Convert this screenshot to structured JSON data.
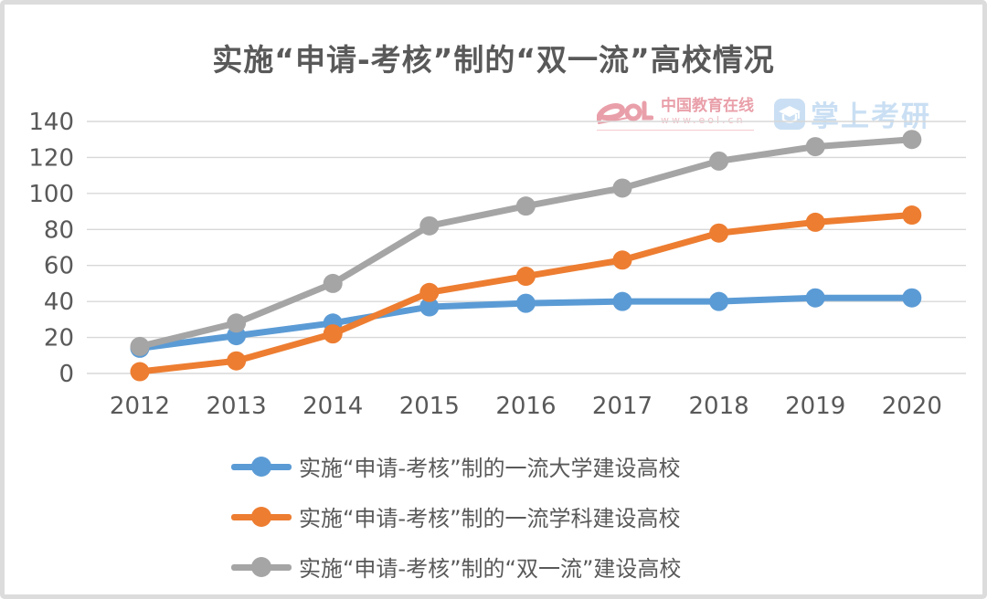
{
  "page": {
    "title": "实施“申请-考核”制的“双一流”高校情况"
  },
  "watermark": {
    "eol": {
      "name": "中国教育在线",
      "url": "www.eol.cn",
      "color": "#e2808d"
    },
    "zsky": {
      "name": "掌上考研",
      "color": "#b9d5ef"
    }
  },
  "chart_data": {
    "type": "line",
    "title": "实施“申请-考核”制的“双一流”高校情况",
    "categories": [
      "2012",
      "2013",
      "2014",
      "2015",
      "2016",
      "2017",
      "2018",
      "2019",
      "2020"
    ],
    "series": [
      {
        "name": "实施“申请-考核”制的一流大学建设高校",
        "color": "#5B9BD5",
        "values": [
          14,
          21,
          28,
          37,
          39,
          40,
          40,
          42,
          42
        ]
      },
      {
        "name": "实施“申请-考核”制的一流学科建设高校",
        "color": "#ED7D31",
        "values": [
          1,
          7,
          22,
          45,
          54,
          63,
          78,
          84,
          88
        ]
      },
      {
        "name": "实施“申请-考核”制的“双一流”建设高校",
        "color": "#A5A5A5",
        "values": [
          15,
          28,
          50,
          82,
          93,
          103,
          118,
          126,
          130
        ]
      }
    ],
    "xlabel": "",
    "ylabel": "",
    "ylim": [
      0,
      140
    ],
    "ytick_step": 20,
    "yticks": [
      0,
      20,
      40,
      60,
      80,
      100,
      120,
      140
    ],
    "grid": true,
    "legend_position": "bottom",
    "axis_text_color": "#595959",
    "gridline_color": "#d8d8d8"
  }
}
